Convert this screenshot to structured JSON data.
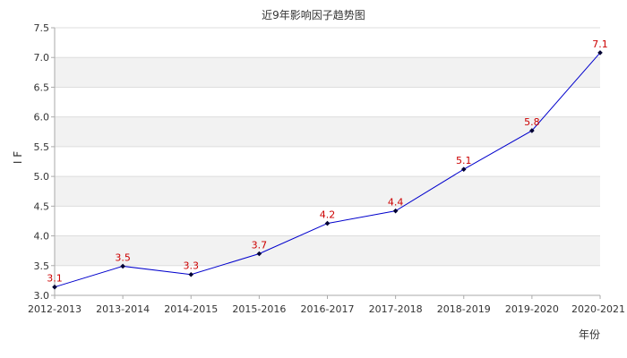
{
  "chart_data": {
    "type": "line",
    "title": "近9年影响因子趋势图",
    "xlabel": "年份",
    "ylabel": "I F",
    "categories": [
      "2012-2013",
      "2013-2014",
      "2014-2015",
      "2015-2016",
      "2016-2017",
      "2017-2018",
      "2018-2019",
      "2019-2020",
      "2020-2021"
    ],
    "series": [
      {
        "values": [
          3.14,
          3.49,
          3.35,
          3.7,
          4.21,
          4.42,
          5.12,
          5.77,
          7.08
        ],
        "data_labels": [
          "3.1",
          "3.5",
          "3.3",
          "3.7",
          "4.2",
          "4.4",
          "5.1",
          "5.8",
          "7.1"
        ]
      }
    ],
    "ylim": [
      3.0,
      7.5
    ],
    "yticks": [
      3.0,
      3.5,
      4.0,
      4.5,
      5.0,
      5.5,
      6.0,
      6.5,
      7.0,
      7.5
    ],
    "ytick_labels": [
      "3.0",
      "3.5",
      "4.0",
      "4.5",
      "5.0",
      "5.5",
      "6.0",
      "6.5",
      "7.0",
      "7.5"
    ],
    "grid": true,
    "band_fill": true,
    "colors": {
      "line": "#0000cc",
      "marker": "#000033",
      "data_label": "#cc0000",
      "band": "#f2f2f2",
      "grid": "#dddddd",
      "axis": "#aaaaaa"
    }
  }
}
